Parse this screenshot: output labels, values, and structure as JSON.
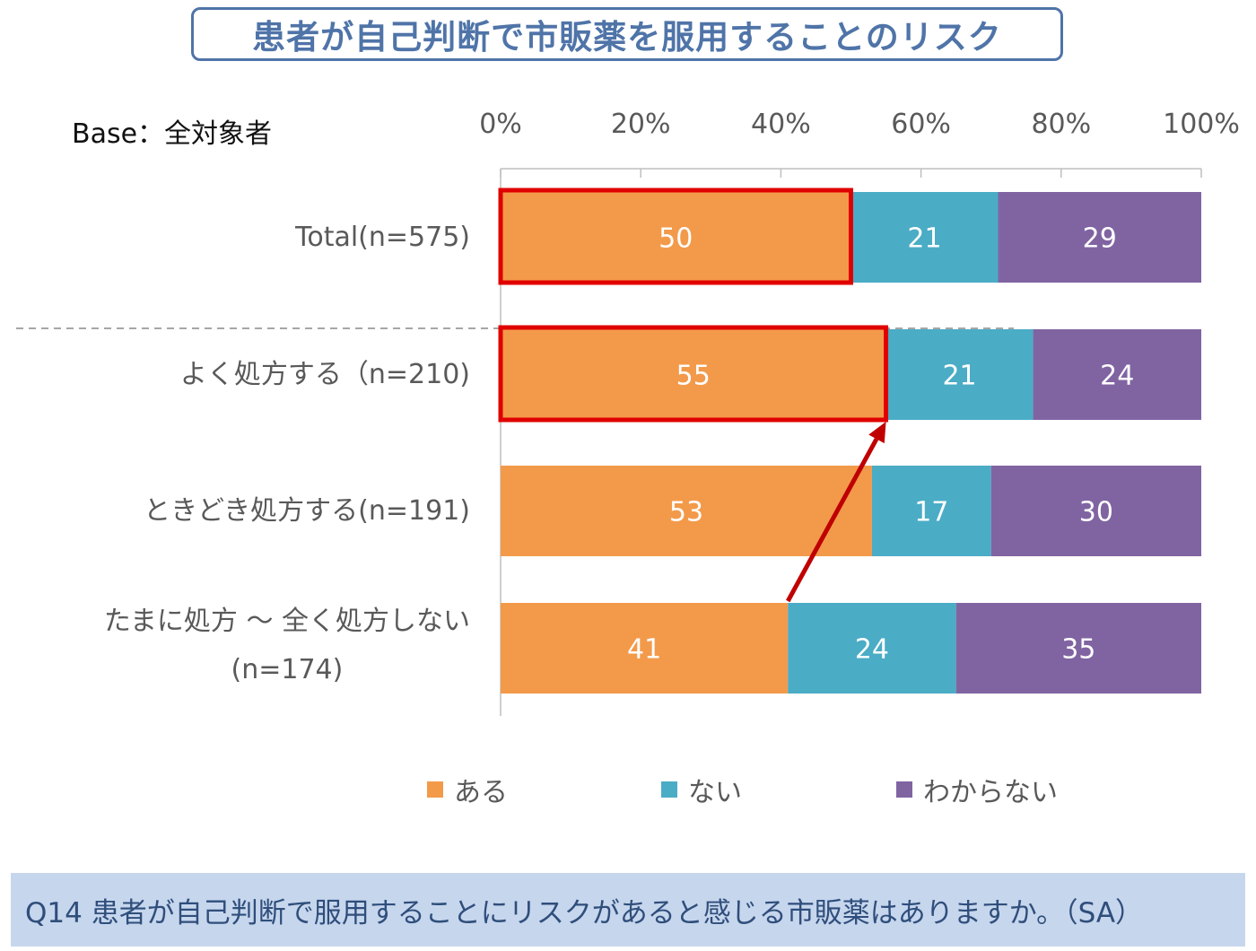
{
  "title": "患者が自己判断で市販薬を服用することのリスク",
  "base_label": "Base：全対象者",
  "question": "Q14  患者が自己判断で服用することにリスクがあると感じる市販薬はありますか。（SA）",
  "colors": {
    "aru": "#f39a4a",
    "nai": "#4bacc6",
    "wakaranai": "#8064a2",
    "highlight": "#e00000",
    "arrow": "#c00000",
    "title": "#4f74a8"
  },
  "chart_data": {
    "type": "bar",
    "orientation": "horizontal",
    "stacked": true,
    "unit": "%",
    "xlim": [
      0,
      100
    ],
    "x_ticks": [
      "0%",
      "20%",
      "40%",
      "60%",
      "80%",
      "100%"
    ],
    "categories": [
      "Total(n=575)",
      "よく処方する（n=210)",
      "ときどき処方する(n=191)",
      "たまに処方 ～ 全く処方しない (n=174)"
    ],
    "category_lines": [
      [
        "Total(n=575)"
      ],
      [
        "よく処方する（n=210)"
      ],
      [
        "ときどき処方する(n=191)"
      ],
      [
        "たまに処方 ～ 全く処方しない",
        "(n=174)"
      ]
    ],
    "series": [
      {
        "name": "ある",
        "values": [
          50,
          55,
          53,
          41
        ]
      },
      {
        "name": "ない",
        "values": [
          21,
          21,
          17,
          24
        ]
      },
      {
        "name": "わからない",
        "values": [
          29,
          24,
          30,
          35
        ]
      }
    ],
    "highlighted": [
      {
        "category_index": 0,
        "series_index": 0
      },
      {
        "category_index": 1,
        "series_index": 0
      }
    ],
    "annotation_arrow": {
      "from": {
        "category_index": 3,
        "series_index": 0
      },
      "to": {
        "category_index": 1,
        "series_index": 0
      }
    },
    "legend_position": "bottom",
    "grid": true
  }
}
